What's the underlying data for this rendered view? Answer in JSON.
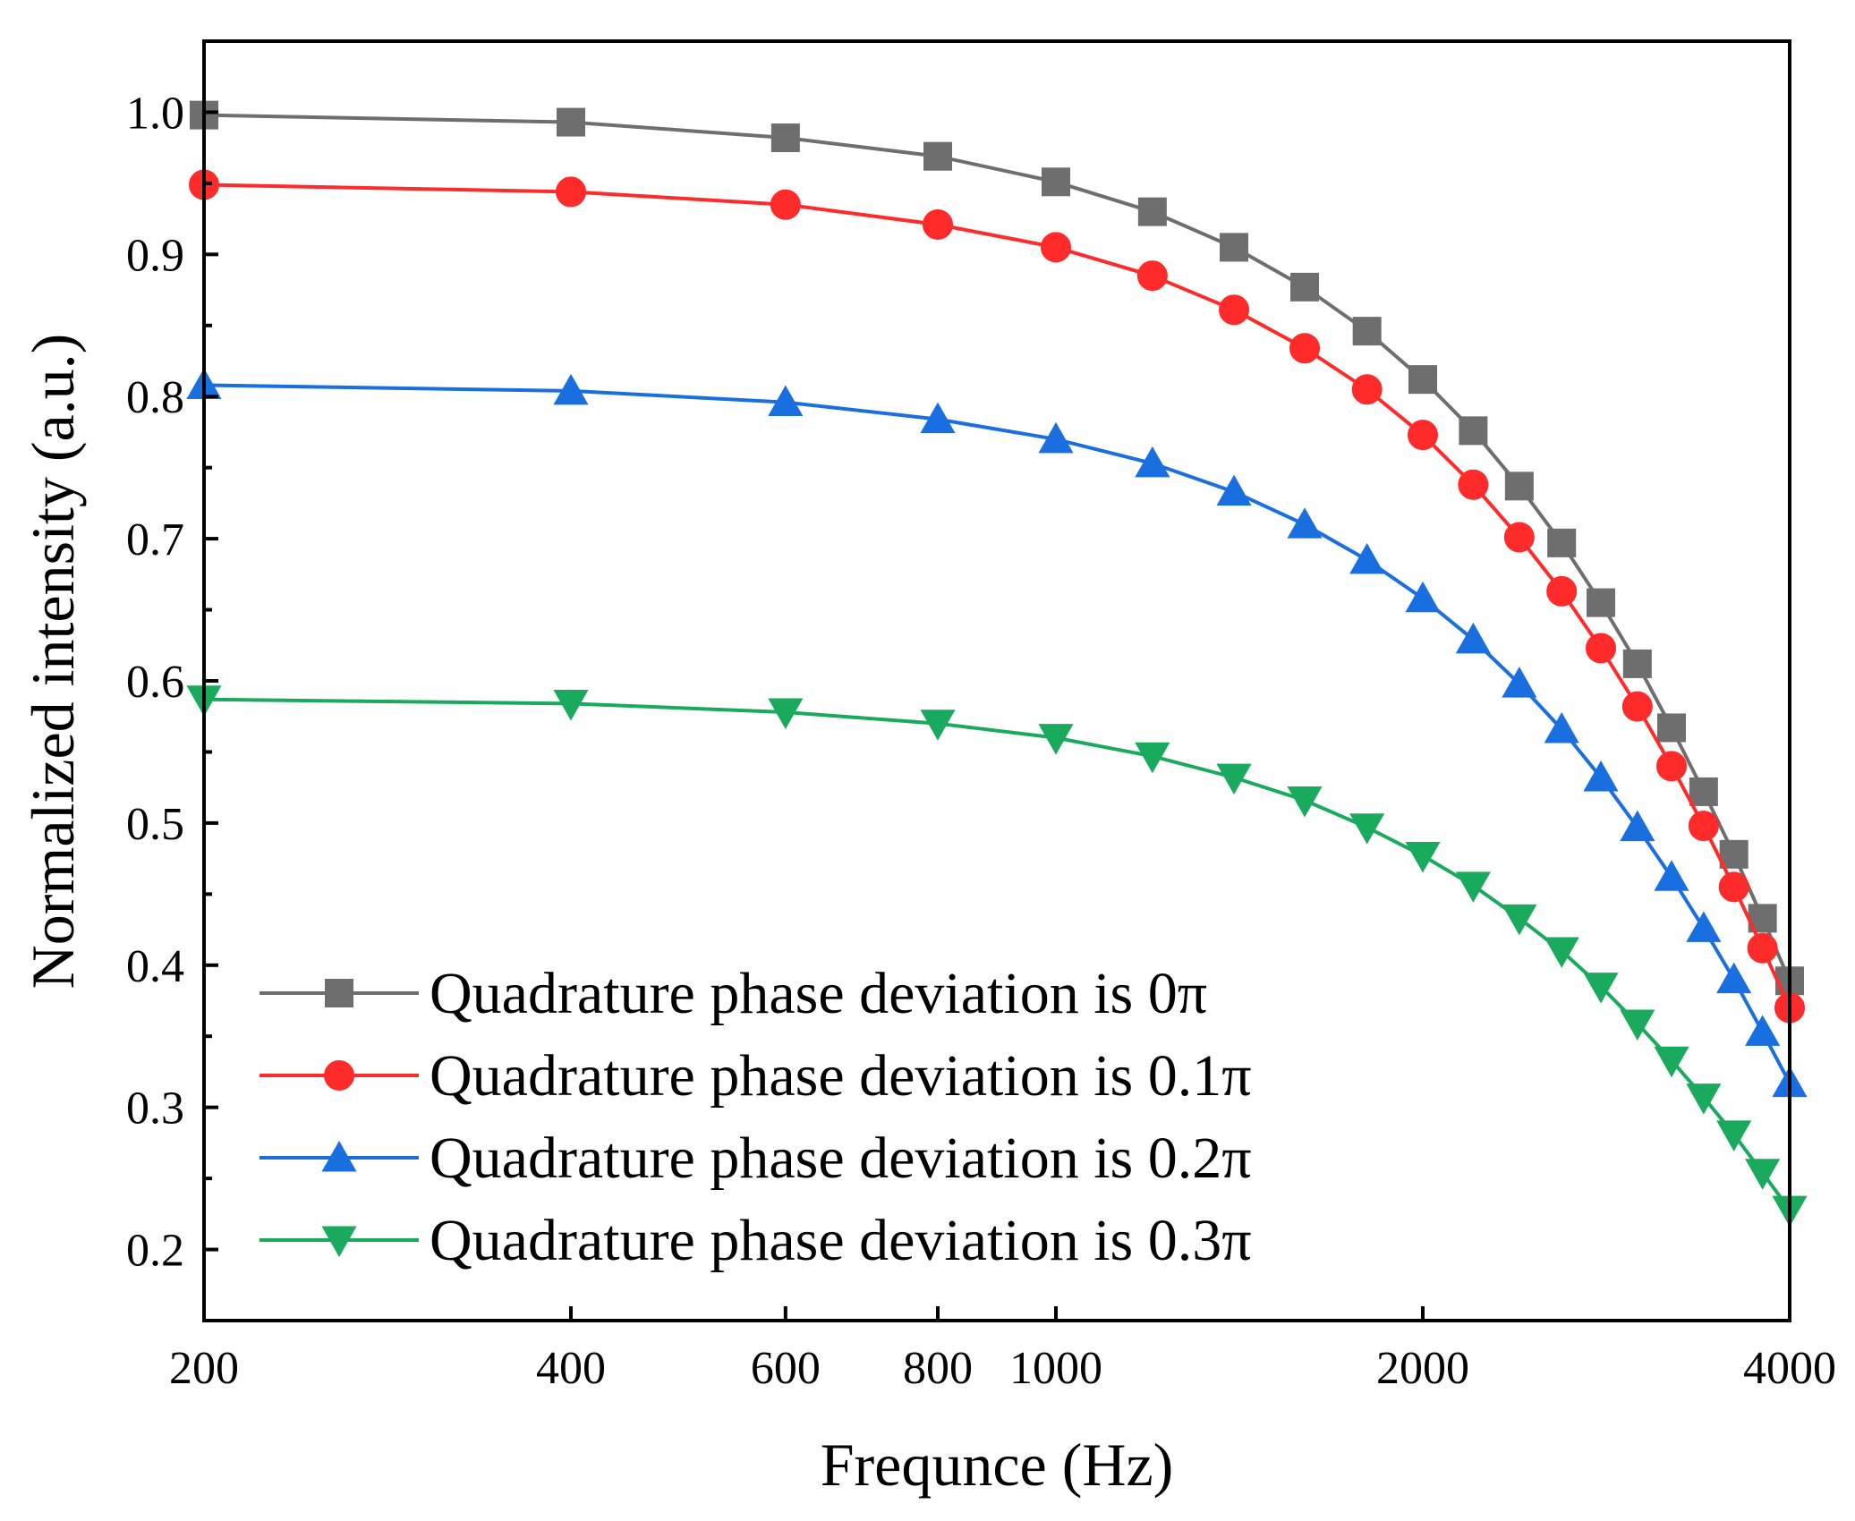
{
  "chart_data": {
    "type": "line",
    "title": "",
    "xlabel": "Frequnce (Hz)",
    "ylabel": "Normalized intensity (a.u.)",
    "xscale": "log",
    "xlim": [
      200,
      4000
    ],
    "ylim": [
      0.15,
      1.05
    ],
    "xticks": [
      200,
      400,
      600,
      800,
      1000,
      2000,
      4000
    ],
    "xtick_labels": [
      "200",
      "400",
      "600",
      "800",
      "1000",
      "2000",
      "4000"
    ],
    "yticks": [
      0.2,
      0.3,
      0.4,
      0.5,
      0.6,
      0.7,
      0.8,
      0.9,
      1.0
    ],
    "ytick_labels": [
      "0.2",
      "0.3",
      "0.4",
      "0.5",
      "0.6",
      "0.7",
      "0.8",
      "0.9",
      "1.0"
    ],
    "legend_position": "lower-left",
    "x": [
      200,
      400,
      600,
      800,
      1000,
      1200,
      1400,
      1600,
      1800,
      2000,
      2200,
      2400,
      2600,
      2800,
      3000,
      3200,
      3400,
      3600,
      3800,
      4000
    ],
    "series": [
      {
        "name": "Quadrature phase deviation is 0π",
        "color": "#6e6e6e",
        "marker": "square",
        "values": [
          0.998,
          0.993,
          0.982,
          0.969,
          0.951,
          0.93,
          0.905,
          0.877,
          0.846,
          0.812,
          0.776,
          0.737,
          0.697,
          0.655,
          0.612,
          0.567,
          0.522,
          0.478,
          0.433,
          0.389
        ]
      },
      {
        "name": "Quadrature phase deviation is 0.1π",
        "color": "#ff2a2a",
        "marker": "circle",
        "values": [
          0.949,
          0.944,
          0.935,
          0.921,
          0.905,
          0.885,
          0.861,
          0.834,
          0.805,
          0.773,
          0.738,
          0.701,
          0.663,
          0.623,
          0.582,
          0.54,
          0.498,
          0.455,
          0.412,
          0.37
        ]
      },
      {
        "name": "Quadrature phase deviation is 0.2π",
        "color": "#1a6fe0",
        "marker": "triangle-up",
        "values": [
          0.808,
          0.804,
          0.796,
          0.784,
          0.77,
          0.753,
          0.733,
          0.71,
          0.685,
          0.658,
          0.629,
          0.598,
          0.566,
          0.532,
          0.497,
          0.462,
          0.426,
          0.39,
          0.353,
          0.317
        ]
      },
      {
        "name": "Quadrature phase deviation is 0.3π",
        "color": "#1aaa5e",
        "marker": "triangle-down",
        "values": [
          0.587,
          0.584,
          0.578,
          0.57,
          0.56,
          0.547,
          0.532,
          0.516,
          0.497,
          0.477,
          0.456,
          0.433,
          0.41,
          0.385,
          0.359,
          0.333,
          0.307,
          0.281,
          0.254,
          0.228
        ]
      }
    ]
  }
}
